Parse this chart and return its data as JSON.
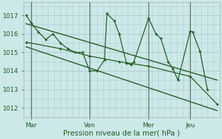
{
  "title": "Pression niveau de la mer( hPa )",
  "bg_color": "#cce8e8",
  "grid_color": "#aacccc",
  "line_color": "#1a5c1a",
  "ylim": [
    1011.5,
    1017.7
  ],
  "yticks": [
    1012,
    1013,
    1014,
    1015,
    1016,
    1017
  ],
  "x_tick_labels": [
    "Mar",
    "Ven",
    "Mer",
    "Jeu"
  ],
  "x_tick_positions": [
    2,
    26,
    50,
    67
  ],
  "vline_positions": [
    2,
    26,
    50,
    67
  ],
  "xlim": [
    -1,
    79
  ],
  "series1_x": [
    0,
    2,
    5,
    8,
    11,
    14,
    17,
    20,
    23,
    26,
    29,
    32,
    33,
    36,
    38,
    41,
    43,
    44,
    50,
    53,
    55,
    58,
    60,
    62,
    67,
    68,
    71,
    74
  ],
  "series1_y": [
    1017.0,
    1016.6,
    1016.1,
    1015.7,
    1016.0,
    1015.5,
    1015.2,
    1015.0,
    1015.0,
    1014.0,
    1014.0,
    1014.6,
    1017.1,
    1016.7,
    1016.0,
    1014.4,
    1014.35,
    1014.5,
    1016.85,
    1016.0,
    1015.75,
    1014.5,
    1014.1,
    1013.5,
    1016.15,
    1016.1,
    1015.05,
    1013.0
  ],
  "series2_x": [
    0,
    14,
    26,
    38,
    50,
    67,
    78
  ],
  "series2_y": [
    1015.55,
    1015.2,
    1014.8,
    1014.5,
    1014.25,
    1013.7,
    1012.2
  ],
  "trend1_x": [
    0,
    78
  ],
  "trend1_y": [
    1016.55,
    1013.5
  ],
  "trend2_x": [
    0,
    78
  ],
  "trend2_y": [
    1015.3,
    1011.85
  ]
}
